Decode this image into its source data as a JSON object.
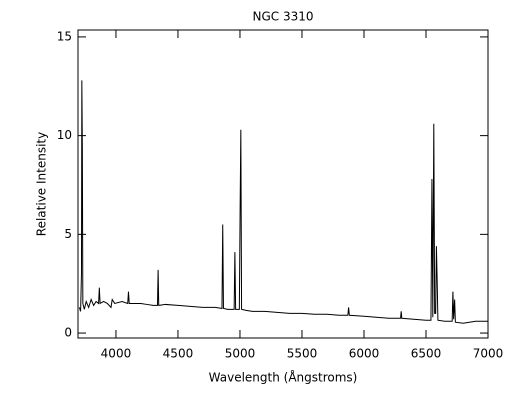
{
  "chart_data": {
    "type": "line",
    "title": "NGC 3310",
    "x_label": "Wavelength (Ångstroms)",
    "y_label": "Relative Intensity",
    "xlim": [
      3694,
      7000
    ],
    "ylim": [
      -0.25,
      15.35
    ],
    "xticks": [
      4000,
      4500,
      5000,
      5500,
      6000,
      6500,
      7000
    ],
    "yticks": [
      0,
      5,
      10,
      15
    ],
    "series": [
      {
        "color": "#000000",
        "x": [
          3705,
          3715,
          3722,
          3725,
          3729,
          3733,
          3745,
          3760,
          3780,
          3800,
          3820,
          3840,
          3860,
          3866,
          3872,
          3900,
          3930,
          3960,
          3970,
          3990,
          4050,
          4095,
          4101,
          4107,
          4150,
          4200,
          4250,
          4300,
          4335,
          4340,
          4345,
          4400,
          4500,
          4600,
          4700,
          4800,
          4855,
          4861,
          4867,
          4900,
          4953,
          4959,
          4965,
          4995,
          5001,
          5007,
          5013,
          5050,
          5100,
          5200,
          5300,
          5400,
          5500,
          5600,
          5700,
          5800,
          5870,
          5876,
          5882,
          6000,
          6100,
          6200,
          6295,
          6300,
          6305,
          6400,
          6500,
          6540,
          6548,
          6555,
          6563,
          6570,
          6578,
          6584,
          6590,
          6596,
          6650,
          6700,
          6711,
          6717,
          6723,
          6731,
          6737,
          6800,
          6850,
          6900,
          7000
        ],
        "values": [
          1.3,
          1.1,
          3.0,
          12.8,
          9.4,
          1.5,
          1.2,
          1.6,
          1.3,
          1.7,
          1.4,
          1.6,
          1.5,
          2.3,
          1.5,
          1.6,
          1.5,
          1.3,
          1.7,
          1.5,
          1.6,
          1.5,
          2.1,
          1.5,
          1.5,
          1.5,
          1.45,
          1.4,
          1.4,
          3.2,
          1.4,
          1.45,
          1.4,
          1.35,
          1.3,
          1.3,
          1.25,
          5.5,
          1.25,
          1.2,
          1.2,
          4.1,
          1.2,
          1.2,
          6.1,
          10.3,
          1.2,
          1.15,
          1.1,
          1.1,
          1.05,
          1.0,
          1.0,
          0.95,
          0.95,
          0.9,
          0.9,
          1.3,
          0.9,
          0.85,
          0.8,
          0.75,
          0.75,
          1.1,
          0.75,
          0.7,
          0.65,
          0.65,
          7.8,
          0.8,
          10.6,
          1.0,
          1.0,
          4.4,
          2.7,
          0.65,
          0.6,
          0.6,
          0.6,
          2.1,
          0.7,
          1.7,
          0.55,
          0.5,
          0.55,
          0.6,
          0.6
        ]
      }
    ]
  }
}
